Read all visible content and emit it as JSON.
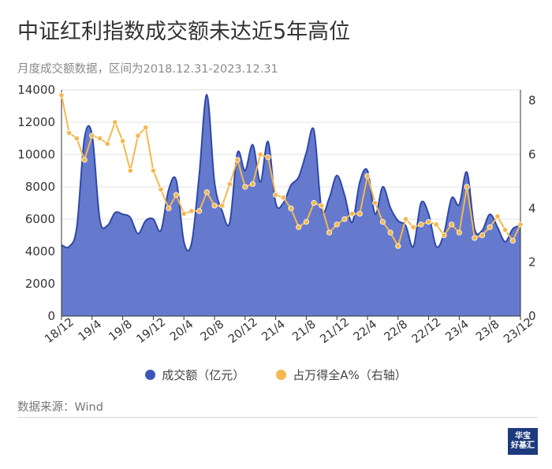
{
  "title": "中证红利指数成交额未达近5年高位",
  "subtitle": "月度成交额数据，区间为2018.12.31-2023.12.31",
  "source": "数据来源：Wind",
  "logo": {
    "line1": "华宝",
    "line2": "好基汇"
  },
  "colors": {
    "area": "#4a63c4",
    "area_line": "#2f48a8",
    "line": "#f4b84f",
    "grid": "#e0e0e0",
    "axis": "#333333"
  },
  "chart_data": {
    "type": "area+line",
    "x_tick_labels": [
      "18/12",
      "19/4",
      "19/8",
      "19/12",
      "20/4",
      "20/8",
      "20/12",
      "21/4",
      "21/8",
      "21/12",
      "22/4",
      "22/8",
      "22/12",
      "23/4",
      "23/8",
      "23/12"
    ],
    "left_axis": {
      "min": 0,
      "max": 14000,
      "ticks": [
        0,
        2000,
        4000,
        6000,
        8000,
        10000,
        12000,
        14000
      ]
    },
    "right_axis": {
      "min": 0,
      "max": 8.4,
      "ticks": [
        0,
        2,
        4,
        6,
        8
      ]
    },
    "series": [
      {
        "name": "成交额（亿元）",
        "axis": "left",
        "type": "area",
        "values": [
          4400,
          4300,
          5500,
          11000,
          11200,
          6000,
          5600,
          6400,
          6300,
          6100,
          5100,
          5900,
          6000,
          5300,
          7800,
          8400,
          4600,
          4500,
          8700,
          13700,
          8300,
          6500,
          5800,
          10100,
          9000,
          10600,
          8300,
          10800,
          7000,
          7000,
          8100,
          8600,
          10100,
          11500,
          6600,
          7300,
          8700,
          7500,
          5800,
          8300,
          9000,
          6300,
          8000,
          6700,
          5900,
          5600,
          4300,
          7000,
          6300,
          4300,
          5100,
          7300,
          6900,
          8900,
          5400,
          5300,
          6300,
          5500,
          4600,
          5400,
          5600
        ]
      },
      {
        "name": "占万得全A%（右轴）",
        "axis": "right",
        "type": "line",
        "values": [
          8.2,
          6.8,
          6.6,
          5.8,
          6.7,
          6.6,
          6.4,
          7.2,
          6.5,
          5.4,
          6.7,
          7.0,
          5.4,
          4.7,
          4.0,
          4.5,
          3.8,
          3.9,
          3.9,
          4.6,
          4.1,
          4.1,
          4.9,
          5.8,
          4.8,
          4.9,
          6.0,
          5.9,
          4.5,
          4.4,
          4.0,
          3.3,
          3.5,
          4.2,
          4.1,
          3.1,
          3.4,
          3.6,
          3.8,
          3.8,
          5.2,
          4.2,
          3.5,
          3.1,
          2.6,
          3.6,
          3.3,
          3.4,
          3.5,
          3.4,
          3.0,
          3.4,
          3.1,
          4.8,
          2.9,
          3.0,
          3.3,
          3.7,
          3.2,
          2.8,
          3.4
        ]
      }
    ],
    "legend": [
      {
        "label": "成交额（亿元）",
        "color": "#3c55b8"
      },
      {
        "label": "占万得全A%（右轴）",
        "color": "#f4b84f"
      }
    ]
  }
}
